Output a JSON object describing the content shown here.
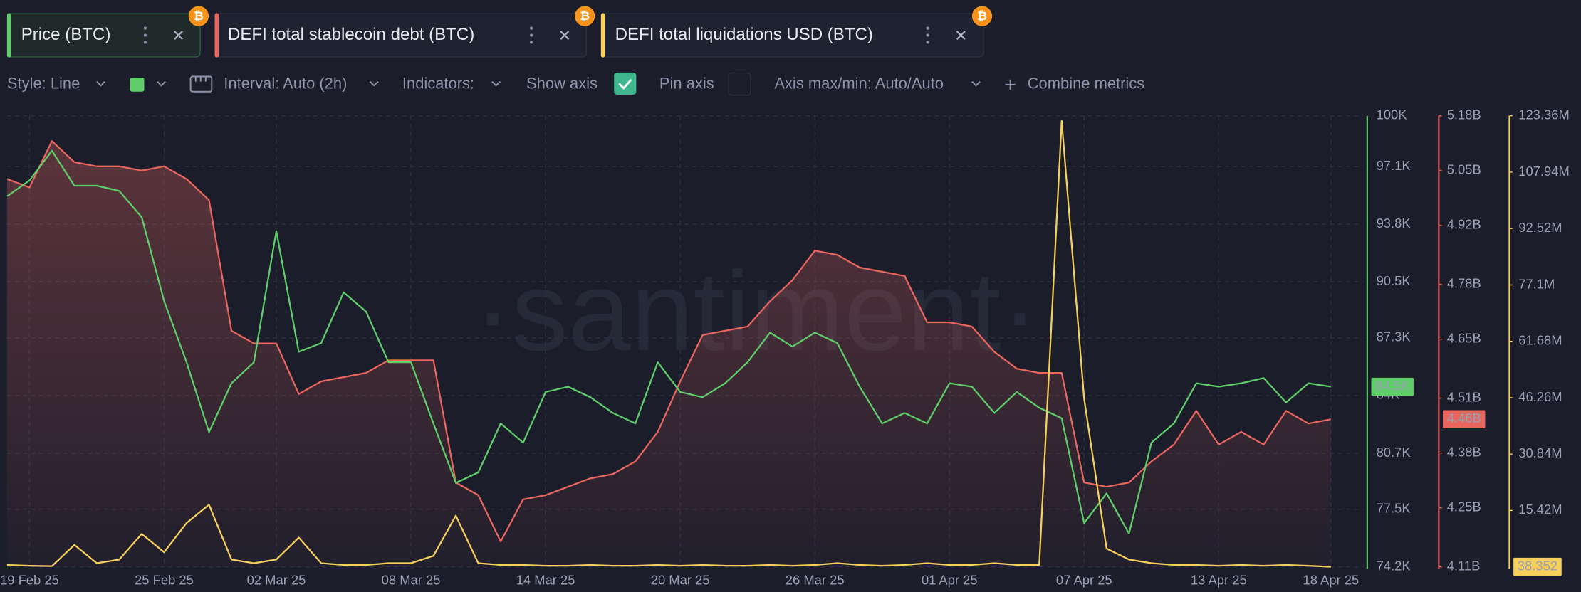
{
  "tabs": {
    "icon": "₿"
  },
  "toolbar": {
    "style": "Style: Line",
    "interval": "Interval: Auto (2h)",
    "indicators": "Indicators:",
    "show_axis": "Show axis",
    "pin_axis": "Pin axis",
    "axis_minmax": "Axis max/min: Auto/Auto",
    "combine": "Combine metrics"
  },
  "chart_data": {
    "type": "line",
    "watermark": "·santiment·",
    "grid": true,
    "x": [
      "2025-02-18",
      "2025-02-19",
      "2025-02-20",
      "2025-02-21",
      "2025-02-22",
      "2025-02-23",
      "2025-02-24",
      "2025-02-25",
      "2025-02-26",
      "2025-02-27",
      "2025-02-28",
      "2025-03-01",
      "2025-03-02",
      "2025-03-03",
      "2025-03-04",
      "2025-03-05",
      "2025-03-06",
      "2025-03-07",
      "2025-03-08",
      "2025-03-09",
      "2025-03-10",
      "2025-03-11",
      "2025-03-12",
      "2025-03-13",
      "2025-03-14",
      "2025-03-15",
      "2025-03-16",
      "2025-03-17",
      "2025-03-18",
      "2025-03-19",
      "2025-03-20",
      "2025-03-21",
      "2025-03-22",
      "2025-03-23",
      "2025-03-24",
      "2025-03-25",
      "2025-03-26",
      "2025-03-27",
      "2025-03-28",
      "2025-03-29",
      "2025-03-30",
      "2025-03-31",
      "2025-04-01",
      "2025-04-02",
      "2025-04-03",
      "2025-04-04",
      "2025-04-05",
      "2025-04-06",
      "2025-04-07",
      "2025-04-08",
      "2025-04-09",
      "2025-04-10",
      "2025-04-11",
      "2025-04-12",
      "2025-04-13",
      "2025-04-14",
      "2025-04-15",
      "2025-04-16",
      "2025-04-17",
      "2025-04-18"
    ],
    "xlim": [
      "2025-02-18",
      "2025-04-18"
    ],
    "xticks": [
      {
        "value": "2025-02-19",
        "label": "19 Feb 25"
      },
      {
        "value": "2025-02-25",
        "label": "25 Feb 25"
      },
      {
        "value": "2025-03-02",
        "label": "02 Mar 25"
      },
      {
        "value": "2025-03-08",
        "label": "08 Mar 25"
      },
      {
        "value": "2025-03-14",
        "label": "14 Mar 25"
      },
      {
        "value": "2025-03-20",
        "label": "20 Mar 25"
      },
      {
        "value": "2025-03-26",
        "label": "26 Mar 25"
      },
      {
        "value": "2025-04-01",
        "label": "01 Apr 25"
      },
      {
        "value": "2025-04-07",
        "label": "07 Apr 25"
      },
      {
        "value": "2025-04-13",
        "label": "13 Apr 25"
      },
      {
        "value": "2025-04-18",
        "label": "18 Apr 25"
      }
    ],
    "ylim": [
      74200,
      100000
    ],
    "yticks": [
      {
        "value": 100000,
        "label": "100K"
      },
      {
        "value": 97100,
        "label": "97.1K"
      },
      {
        "value": 93800,
        "label": "93.8K"
      },
      {
        "value": 90500,
        "label": "90.5K"
      },
      {
        "value": 87300,
        "label": "87.3K"
      },
      {
        "value": 84000,
        "label": "84K"
      },
      {
        "value": 80700,
        "label": "80.7K"
      },
      {
        "value": 77500,
        "label": "77.5K"
      },
      {
        "value": 74200,
        "label": "74.2K"
      }
    ],
    "y2lim": [
      4110000000,
      5180000000
    ],
    "y2ticks": [
      {
        "value": 5180000000,
        "label": "5.18B"
      },
      {
        "value": 5050000000,
        "label": "5.05B"
      },
      {
        "value": 4920000000,
        "label": "4.92B"
      },
      {
        "value": 4780000000,
        "label": "4.78B"
      },
      {
        "value": 4650000000,
        "label": "4.65B"
      },
      {
        "value": 4510000000,
        "label": "4.51B"
      },
      {
        "value": 4380000000,
        "label": "4.38B"
      },
      {
        "value": 4250000000,
        "label": "4.25B"
      },
      {
        "value": 4110000000,
        "label": "4.11B"
      }
    ],
    "y3lim": [
      0,
      123360000
    ],
    "y3ticks": [
      {
        "value": 123360000,
        "label": "123.36M"
      },
      {
        "value": 107940000,
        "label": "107.94M"
      },
      {
        "value": 92520000,
        "label": "92.52M"
      },
      {
        "value": 77100000,
        "label": "77.1M"
      },
      {
        "value": 61680000,
        "label": "61.68M"
      },
      {
        "value": 46260000,
        "label": "46.26M"
      },
      {
        "value": 30840000,
        "label": "30.84M"
      },
      {
        "value": 15420000,
        "label": "15.42M"
      }
    ],
    "series": [
      {
        "name": "Price (BTC)",
        "color": "#5fce6a",
        "axis": "y",
        "last_value_label": "84.5K",
        "values": [
          95400,
          96300,
          98000,
          96000,
          96000,
          95700,
          94200,
          89400,
          85900,
          81900,
          84700,
          85900,
          93400,
          86500,
          87000,
          89900,
          88800,
          85900,
          85900,
          82400,
          79000,
          79600,
          82400,
          81300,
          84200,
          84500,
          83900,
          83000,
          82400,
          85900,
          84200,
          83900,
          84700,
          85900,
          87600,
          86800,
          87600,
          87000,
          84500,
          82400,
          83000,
          82400,
          84700,
          84500,
          83000,
          84200,
          83300,
          82700,
          76700,
          78400,
          76100,
          81300,
          82400,
          84700,
          84500,
          84700,
          85000,
          83600,
          84700,
          84500
        ]
      },
      {
        "name": "DEFI total stablecoin debt (BTC)",
        "color": "#e9665f",
        "axis": "y2",
        "last_value_label": "4.46B",
        "values": [
          5030000000.0,
          5010000000.0,
          5120000000.0,
          5070000000.0,
          5060000000.0,
          5060000000.0,
          5050000000.0,
          5060000000.0,
          5030000000.0,
          4980000000.0,
          4670000000.0,
          4640000000.0,
          4640000000.0,
          4520000000.0,
          4550000000.0,
          4560000000.0,
          4570000000.0,
          4600000000.0,
          4600000000.0,
          4600000000.0,
          4310000000.0,
          4280000000.0,
          4170000000.0,
          4270000000.0,
          4280000000.0,
          4300000000.0,
          4320000000.0,
          4330000000.0,
          4360000000.0,
          4430000000.0,
          4550000000.0,
          4660000000.0,
          4670000000.0,
          4680000000.0,
          4740000000.0,
          4790000000.0,
          4860000000.0,
          4850000000.0,
          4820000000.0,
          4810000000.0,
          4800000000.0,
          4690000000.0,
          4690000000.0,
          4680000000.0,
          4620000000.0,
          4580000000.0,
          4570000000.0,
          4570000000.0,
          4310000000.0,
          4300000000.0,
          4310000000.0,
          4360000000.0,
          4400000000.0,
          4480000000.0,
          4400000000.0,
          4430000000.0,
          4400000000.0,
          4480000000.0,
          4450000000.0,
          4460000000.0
        ]
      },
      {
        "name": "DEFI total liquidations USD (BTC)",
        "color": "#f6cf5d",
        "axis": "y3",
        "last_value_label": "38.352",
        "values": [
          500000,
          300000,
          200000,
          6000000,
          1000000,
          2000000,
          9000000,
          4000000,
          12000000,
          17000000,
          2000000,
          1000000,
          2000000,
          8000000,
          1000000,
          500000,
          500000,
          1000000,
          1000000,
          3000000,
          14000000,
          1000000,
          500000,
          500000,
          300000,
          300000,
          500000,
          300000,
          300000,
          500000,
          300000,
          500000,
          300000,
          300000,
          500000,
          300000,
          500000,
          1000000,
          500000,
          300000,
          500000,
          1000000,
          500000,
          500000,
          1000000,
          500000,
          500000,
          122000000,
          46000000,
          5000000,
          2000000,
          1000000,
          500000,
          500000,
          300000,
          500000,
          300000,
          500000,
          300000,
          38.352
        ]
      }
    ]
  }
}
